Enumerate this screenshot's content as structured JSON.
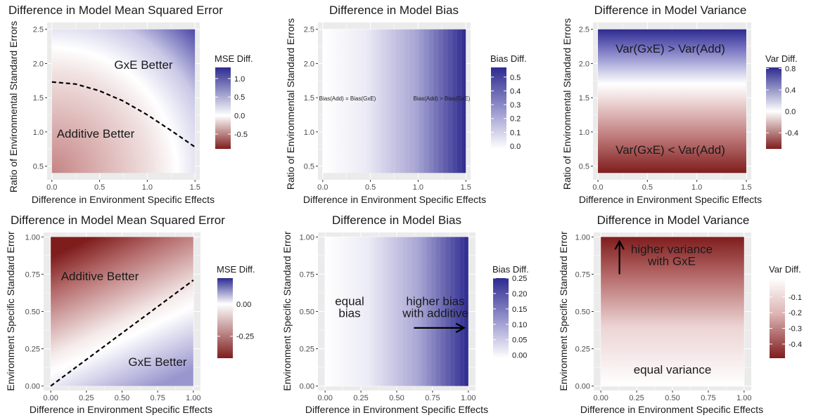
{
  "colors": {
    "panel_bg": "#ebebeb",
    "grid": "#ffffff",
    "low": "#7f1d1d",
    "mid": "#ffffff",
    "high": "#2d2b8f",
    "axis_text": "#4d4d4d",
    "title_text": "#1a1a1a"
  },
  "chart_data": [
    {
      "type": "heatmap",
      "title": "Difference in Model Mean Squared Error",
      "xlabel": "Difference in Environment Specific Effects",
      "ylabel": "Ratio of Environmental Standard Errors",
      "xlim": [
        -0.05,
        1.55
      ],
      "ylim": [
        0.3,
        2.6
      ],
      "x_ticks": [
        "0.0",
        "0.5",
        "1.0",
        "1.5"
      ],
      "y_ticks": [
        "0.5",
        "1.0",
        "1.5",
        "2.0",
        "2.5"
      ],
      "x_range": [
        0,
        1.5
      ],
      "y_range": [
        0.4,
        2.5
      ],
      "gradient": "radial",
      "legend": {
        "title": "MSE Diff.",
        "ticks": [
          "1.0",
          "0.5",
          "0.0",
          "-0.5"
        ],
        "range": [
          -0.9,
          1.3
        ]
      },
      "annotations": [
        "GxE Better",
        "Additive Better"
      ],
      "boundary": {
        "style": "dashed",
        "x": [
          0,
          0.25,
          0.5,
          0.75,
          1.0,
          1.25,
          1.5
        ],
        "y": [
          1.73,
          1.7,
          1.6,
          1.45,
          1.25,
          1.02,
          0.78
        ]
      }
    },
    {
      "type": "heatmap",
      "title": "Difference in Model Bias",
      "xlabel": "Difference in Environment Specific Effects",
      "ylabel": "Ratio of Environmental Standard Errors",
      "xlim": [
        -0.05,
        1.55
      ],
      "ylim": [
        0.3,
        2.6
      ],
      "x_ticks": [
        "0.0",
        "0.5",
        "1.0",
        "1.5"
      ],
      "y_ticks": [
        "0.5",
        "1.0",
        "1.5",
        "2.0",
        "2.5"
      ],
      "x_range": [
        0,
        1.5
      ],
      "y_range": [
        0.4,
        2.5
      ],
      "gradient": "horizontal",
      "legend": {
        "title": "Bias Diff.",
        "ticks": [
          "0.5",
          "0.4",
          "0.3",
          "0.2",
          "0.1",
          "0.0"
        ],
        "range": [
          -0.02,
          0.57
        ]
      },
      "annotations": [
        "Bias(Add) = Bias(GxE)",
        "Bias(Add) > Bias(GxE)"
      ]
    },
    {
      "type": "heatmap",
      "title": "Difference in Model Variance",
      "xlabel": "Difference in Environment Specific Effects",
      "ylabel": "Ratio of Environmental Standard Errors",
      "xlim": [
        -0.05,
        1.55
      ],
      "ylim": [
        0.3,
        2.6
      ],
      "x_ticks": [
        "0.0",
        "0.5",
        "1.0",
        "1.5"
      ],
      "y_ticks": [
        "0.5",
        "1.0",
        "1.5",
        "2.0",
        "2.5"
      ],
      "x_range": [
        0,
        1.5
      ],
      "y_range": [
        0.4,
        2.5
      ],
      "gradient": "vertical",
      "legend": {
        "title": "Var Diff.",
        "ticks": [
          "0.8",
          "0.4",
          "0.0",
          "-0.4"
        ],
        "range": [
          -0.7,
          0.82
        ]
      },
      "annotations": [
        "Var(GxE) > Var(Add)",
        "Var(GxE) < Var(Add)"
      ]
    },
    {
      "type": "heatmap",
      "title": "Difference in Model Mean Squared Error",
      "xlabel": "Difference in Environment Specific Effects",
      "ylabel": "Environment Specific Standard Error",
      "xlim": [
        -0.05,
        1.05
      ],
      "ylim": [
        -0.03,
        1.03
      ],
      "x_ticks": [
        "0.00",
        "0.25",
        "0.50",
        "0.75",
        "1.00"
      ],
      "y_ticks": [
        "0.00",
        "0.25",
        "0.50",
        "0.75",
        "1.00"
      ],
      "x_range": [
        0,
        1
      ],
      "y_range": [
        0,
        1
      ],
      "gradient": "diagonal",
      "legend": {
        "title": "MSE Diff.",
        "ticks": [
          "0.00",
          "-0.25"
        ],
        "range": [
          -0.42,
          0.2
        ]
      },
      "annotations": [
        "Additive Better",
        "GxE Better"
      ],
      "boundary": {
        "style": "dashed",
        "x": [
          0,
          1
        ],
        "y": [
          0,
          0.71
        ]
      }
    },
    {
      "type": "heatmap",
      "title": "Difference in Model Bias",
      "xlabel": "Difference in Environment Specific Effects",
      "ylabel": "Environment Specific Standard Error",
      "xlim": [
        -0.05,
        1.05
      ],
      "ylim": [
        -0.03,
        1.03
      ],
      "x_ticks": [
        "0.00",
        "0.25",
        "0.50",
        "0.75",
        "1.00"
      ],
      "y_ticks": [
        "0.00",
        "0.25",
        "0.50",
        "0.75",
        "1.00"
      ],
      "x_range": [
        0,
        1
      ],
      "y_range": [
        0,
        1
      ],
      "gradient": "horizontal",
      "legend": {
        "title": "Bias Diff.",
        "ticks": [
          "0.25",
          "0.20",
          "0.15",
          "0.10",
          "0.05",
          "0.00"
        ],
        "range": [
          -0.01,
          0.25
        ]
      },
      "annotations": [
        "equal\nbias",
        "higher bias\nwith additive"
      ],
      "arrow": {
        "x": [
          0.62,
          0.97
        ],
        "y": [
          0.39,
          0.39
        ]
      }
    },
    {
      "type": "heatmap",
      "title": "Difference in Model Variance",
      "xlabel": "Difference in Environment Specific Effects",
      "ylabel": "Environment Specific Standard Error",
      "xlim": [
        -0.05,
        1.05
      ],
      "ylim": [
        -0.03,
        1.03
      ],
      "x_ticks": [
        "0.00",
        "0.25",
        "0.50",
        "0.75",
        "1.00"
      ],
      "y_ticks": [
        "0.00",
        "0.25",
        "0.50",
        "0.75",
        "1.00"
      ],
      "x_range": [
        0,
        1
      ],
      "y_range": [
        0,
        1
      ],
      "gradient": "vertical-down",
      "legend": {
        "title": "Var Diff.",
        "ticks": [
          "-0.1",
          "-0.2",
          "-0.3",
          "-0.4"
        ],
        "range": [
          -0.49,
          0.02
        ]
      },
      "annotations": [
        "higher variance\nwith GxE",
        "equal variance"
      ],
      "arrow": {
        "x": [
          0.13,
          0.13
        ],
        "y": [
          0.75,
          0.97
        ]
      }
    }
  ]
}
